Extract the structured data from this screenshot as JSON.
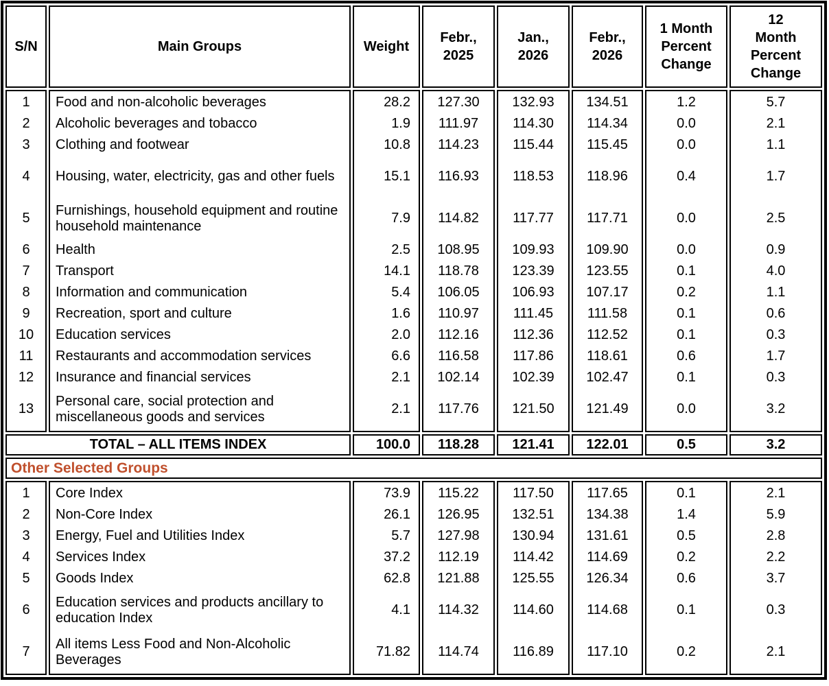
{
  "colors": {
    "accent_text": "#C0502D",
    "border": "#000000",
    "background": "#FFFFFF"
  },
  "header": {
    "sn": "S/N",
    "main_groups": "Main Groups",
    "weight": "Weight",
    "feb_2025": "Febr.,\n2025",
    "jan_2026": "Jan.,\n2026",
    "feb_2026": "Febr.,\n2026",
    "one_month": "1 Month\nPercent\nChange",
    "twelve_month": "12\nMonth\nPercent\nChange"
  },
  "main_groups": {
    "rows": [
      {
        "sn": "1",
        "name": "Food and non-alcoholic beverages",
        "weight": "28.2",
        "feb_2025": "127.30",
        "jan_2026": "132.93",
        "feb_2026": "134.51",
        "one_month_pct": "1.2",
        "twelve_month_pct": "5.7"
      },
      {
        "sn": "2",
        "name": "Alcoholic beverages and tobacco",
        "weight": "1.9",
        "feb_2025": "111.97",
        "jan_2026": "114.30",
        "feb_2026": "114.34",
        "one_month_pct": "0.0",
        "twelve_month_pct": "2.1"
      },
      {
        "sn": "3",
        "name": "Clothing and footwear",
        "weight": "10.8",
        "feb_2025": "114.23",
        "jan_2026": "115.44",
        "feb_2026": "115.45",
        "one_month_pct": "0.0",
        "twelve_month_pct": "1.1"
      },
      {
        "sn": "4",
        "name": "Housing, water, electricity, gas and other fuels",
        "weight": "15.1",
        "feb_2025": "116.93",
        "jan_2026": "118.53",
        "feb_2026": "118.96",
        "one_month_pct": "0.4",
        "twelve_month_pct": "1.7"
      },
      {
        "sn": "5",
        "name": "Furnishings, household equipment and routine household maintenance",
        "weight": "7.9",
        "feb_2025": "114.82",
        "jan_2026": "117.77",
        "feb_2026": "117.71",
        "one_month_pct": "0.0",
        "twelve_month_pct": "2.5"
      },
      {
        "sn": "6",
        "name": "Health",
        "weight": "2.5",
        "feb_2025": "108.95",
        "jan_2026": "109.93",
        "feb_2026": "109.90",
        "one_month_pct": "0.0",
        "twelve_month_pct": "0.9"
      },
      {
        "sn": "7",
        "name": "Transport",
        "weight": "14.1",
        "feb_2025": "118.78",
        "jan_2026": "123.39",
        "feb_2026": "123.55",
        "one_month_pct": "0.1",
        "twelve_month_pct": "4.0"
      },
      {
        "sn": "8",
        "name": "Information and communication",
        "weight": "5.4",
        "feb_2025": "106.05",
        "jan_2026": "106.93",
        "feb_2026": "107.17",
        "one_month_pct": "0.2",
        "twelve_month_pct": "1.1"
      },
      {
        "sn": "9",
        "name": "Recreation, sport and culture",
        "weight": "1.6",
        "feb_2025": "110.97",
        "jan_2026": "111.45",
        "feb_2026": "111.58",
        "one_month_pct": "0.1",
        "twelve_month_pct": "0.6"
      },
      {
        "sn": "10",
        "name": "Education services",
        "weight": "2.0",
        "feb_2025": "112.16",
        "jan_2026": "112.36",
        "feb_2026": "112.52",
        "one_month_pct": "0.1",
        "twelve_month_pct": "0.3"
      },
      {
        "sn": "11",
        "name": "Restaurants and accommodation services",
        "weight": "6.6",
        "feb_2025": "116.58",
        "jan_2026": "117.86",
        "feb_2026": "118.61",
        "one_month_pct": "0.6",
        "twelve_month_pct": "1.7"
      },
      {
        "sn": "12",
        "name": "Insurance and financial services",
        "weight": "2.1",
        "feb_2025": "102.14",
        "jan_2026": "102.39",
        "feb_2026": "102.47",
        "one_month_pct": "0.1",
        "twelve_month_pct": "0.3"
      },
      {
        "sn": "13",
        "name": "Personal care, social protection and miscellaneous goods and services",
        "weight": "2.1",
        "feb_2025": "117.76",
        "jan_2026": "121.50",
        "feb_2026": "121.49",
        "one_month_pct": "0.0",
        "twelve_month_pct": "3.2"
      }
    ]
  },
  "total_row": {
    "label": "TOTAL – ALL ITEMS INDEX",
    "weight": "100.0",
    "feb_2025": "118.28",
    "jan_2026": "121.41",
    "feb_2026": "122.01",
    "one_month_pct": "0.5",
    "twelve_month_pct": "3.2"
  },
  "other_selected_groups": {
    "title": "Other Selected Groups",
    "rows": [
      {
        "sn": "1",
        "name": "Core Index",
        "weight": "73.9",
        "feb_2025": "115.22",
        "jan_2026": "117.50",
        "feb_2026": "117.65",
        "one_month_pct": "0.1",
        "twelve_month_pct": "2.1"
      },
      {
        "sn": "2",
        "name": "Non-Core Index",
        "weight": "26.1",
        "feb_2025": "126.95",
        "jan_2026": "132.51",
        "feb_2026": "134.38",
        "one_month_pct": "1.4",
        "twelve_month_pct": "5.9"
      },
      {
        "sn": "3",
        "name": "Energy, Fuel and Utilities Index",
        "weight": "5.7",
        "feb_2025": "127.98",
        "jan_2026": "130.94",
        "feb_2026": "131.61",
        "one_month_pct": "0.5",
        "twelve_month_pct": "2.8"
      },
      {
        "sn": "4",
        "name": "Services Index",
        "weight": "37.2",
        "feb_2025": "112.19",
        "jan_2026": "114.42",
        "feb_2026": "114.69",
        "one_month_pct": "0.2",
        "twelve_month_pct": "2.2"
      },
      {
        "sn": "5",
        "name": "Goods Index",
        "weight": "62.8",
        "feb_2025": "121.88",
        "jan_2026": "125.55",
        "feb_2026": "126.34",
        "one_month_pct": "0.6",
        "twelve_month_pct": "3.7"
      },
      {
        "sn": "6",
        "name": "Education services and products ancillary to education Index",
        "weight": "4.1",
        "feb_2025": "114.32",
        "jan_2026": "114.60",
        "feb_2026": "114.68",
        "one_month_pct": "0.1",
        "twelve_month_pct": "0.3"
      },
      {
        "sn": "7",
        "name": "All items Less Food and Non-Alcoholic Beverages",
        "weight": "71.82",
        "feb_2025": "114.74",
        "jan_2026": "116.89",
        "feb_2026": "117.10",
        "one_month_pct": "0.2",
        "twelve_month_pct": "2.1"
      }
    ]
  }
}
